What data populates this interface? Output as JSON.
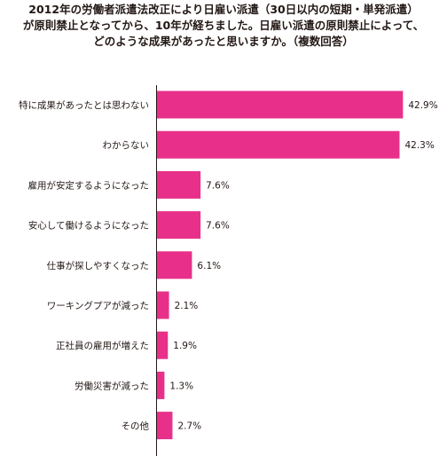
{
  "title_lines": [
    "2012年の労働者派遣法改正により日雇い派遣（30日以内の短期・単発派遣）",
    "が原則禁止となってから、10年が経ちました。日雇い派遣の原則禁止によって、",
    "どのような成果があったと思いますか。（複数回答）"
  ],
  "chart_data": {
    "type": "bar",
    "orientation": "horizontal",
    "categories": [
      "特に成果があったとは思わない",
      "わからない",
      "雇用が安定するようになった",
      "安心して働けるようになった",
      "仕事が探しやすくなった",
      "ワーキングプアが減った",
      "正社員の雇用が増えた",
      "労働災害が減った",
      "その他"
    ],
    "values": [
      42.9,
      42.3,
      7.6,
      7.6,
      6.1,
      2.1,
      1.9,
      1.3,
      2.7
    ],
    "value_labels": [
      "42.9%",
      "42.3%",
      "7.6%",
      "7.6%",
      "6.1%",
      "2.1%",
      "1.9%",
      "1.3%",
      "2.7%"
    ],
    "unit": "%",
    "xlim": [
      0,
      43
    ],
    "bar_color": "#e8308a",
    "axis_color": "#231815",
    "grid": false,
    "legend": "none"
  }
}
